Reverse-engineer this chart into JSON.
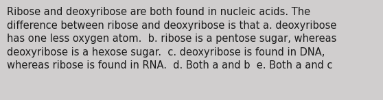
{
  "lines": [
    "Ribose and deoxyribose are both found in nucleic acids. The",
    "difference between ribose and deoxyribose is that a. deoxyribose",
    "has one less oxygen atom.  b. ribose is a pentose sugar, whereas",
    "deoxyribose is a hexose sugar.  c. deoxyribose is found in DNA,",
    "whereas ribose is found in RNA.  d. Both a and b  e. Both a and c"
  ],
  "background_color": "#d0cece",
  "text_color": "#1a1a1a",
  "font_size": 10.5,
  "font_family": "DejaVu Sans",
  "fig_width": 5.58,
  "fig_height": 1.46,
  "dpi": 100
}
